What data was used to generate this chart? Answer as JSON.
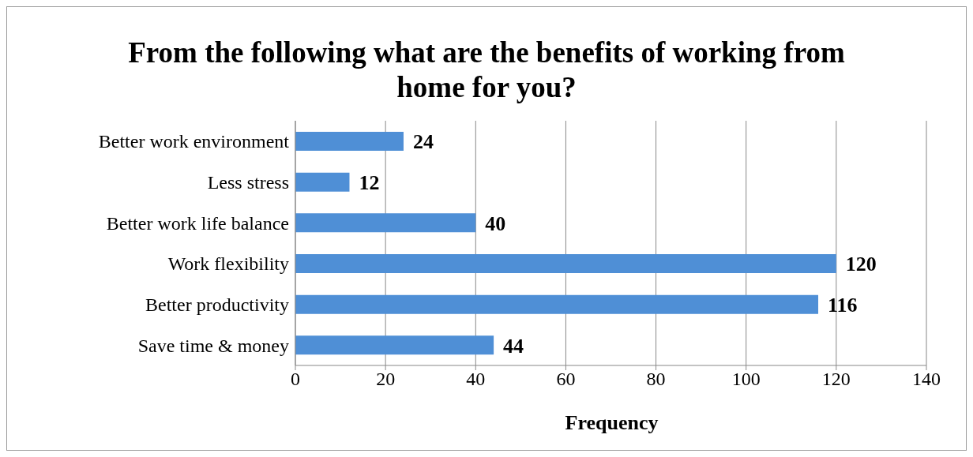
{
  "chart_data": {
    "type": "bar",
    "orientation": "horizontal",
    "title": "From the following what are the benefits of working from home for you?",
    "xlabel": "Frequency",
    "categories": [
      "Better work environment",
      "Less stress",
      "Better work life balance",
      "Work flexibility",
      "Better productivity",
      "Save time & money"
    ],
    "values": [
      24,
      12,
      40,
      120,
      116,
      44
    ],
    "color": "#4f8fd6",
    "xlim": [
      0,
      140
    ],
    "xticks": [
      0,
      20,
      40,
      60,
      80,
      100,
      120,
      140
    ],
    "grid": "x",
    "data_labels": true
  }
}
